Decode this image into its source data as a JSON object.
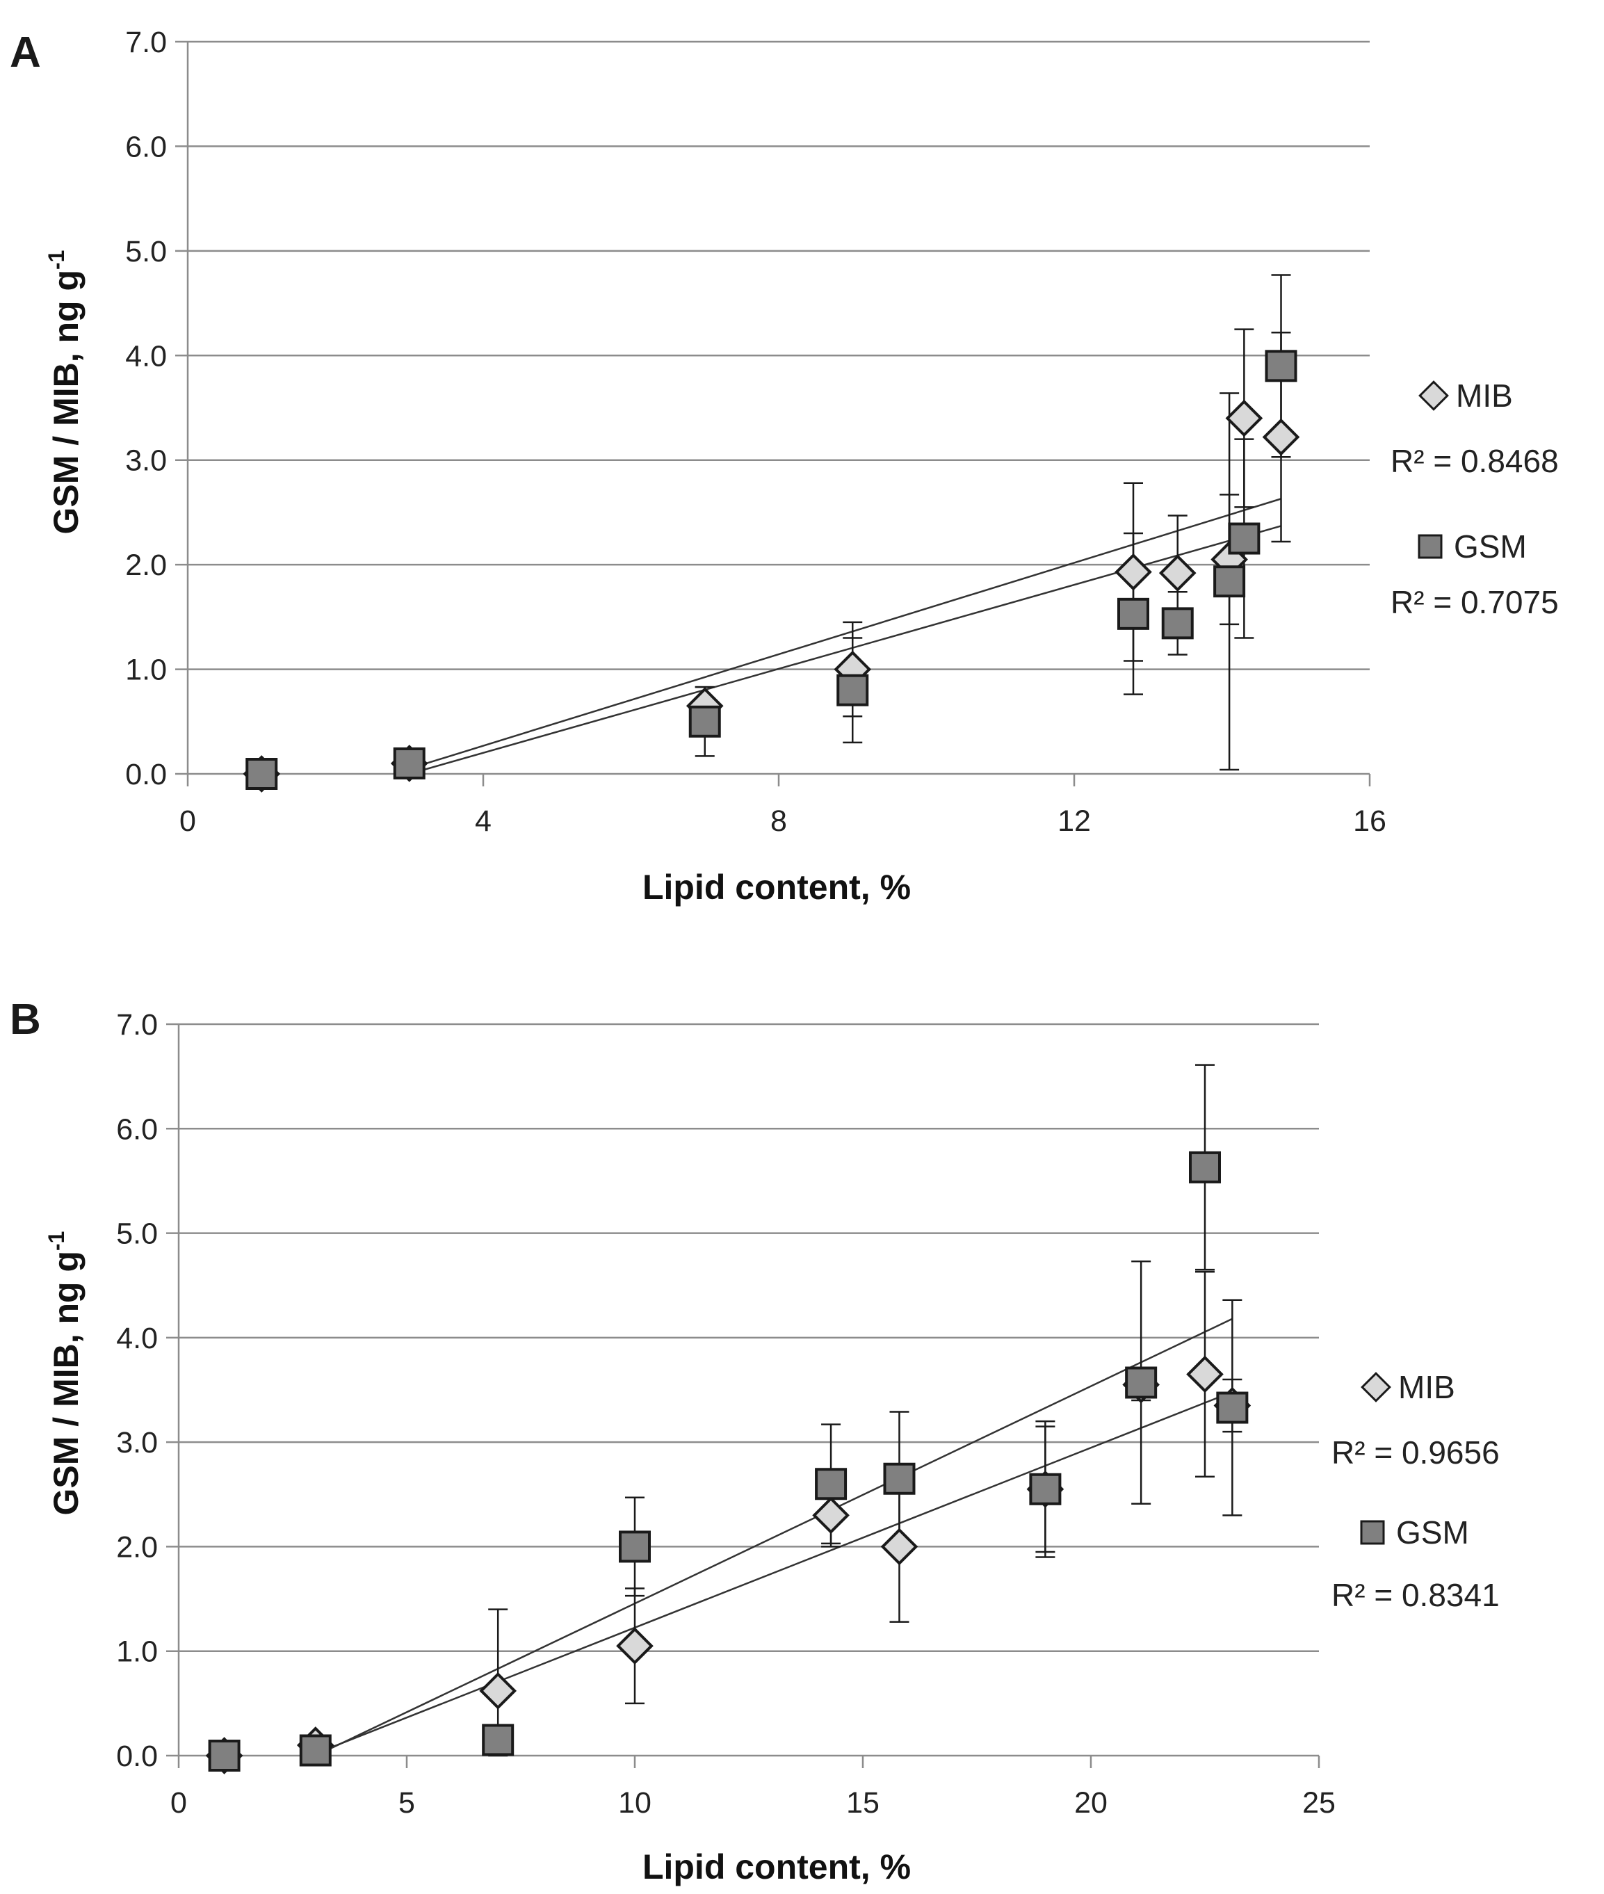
{
  "chart_data": [
    {
      "panel": "A",
      "type": "scatter",
      "xlabel": "Lipid content, %",
      "ylabel": "GSM / MIB, ng g",
      "ylabel_sup": "-1",
      "xlim": [
        0,
        16
      ],
      "ylim": [
        0,
        7
      ],
      "x_ticks": [
        0,
        4,
        8,
        12,
        16
      ],
      "x_tick_labels": [
        "0",
        "4",
        "8",
        "12",
        "16"
      ],
      "y_ticks": [
        0,
        1,
        2,
        3,
        4,
        5,
        6,
        7
      ],
      "y_tick_labels": [
        "0.0",
        "1.0",
        "2.0",
        "3.0",
        "4.0",
        "5.0",
        "6.0",
        "7.0"
      ],
      "series": [
        {
          "name": "MIB",
          "marker": "diamond",
          "color": "#d9d9d9",
          "r2_label": "R² = 0.8468",
          "points": [
            {
              "x": 1,
              "y": 0.0,
              "err": 0.05
            },
            {
              "x": 3,
              "y": 0.1,
              "err": 0.08
            },
            {
              "x": 7,
              "y": 0.65,
              "err": 0.18
            },
            {
              "x": 9,
              "y": 1.0,
              "err": 0.45
            },
            {
              "x": 12.8,
              "y": 1.93,
              "err": 0.85
            },
            {
              "x": 13.4,
              "y": 1.92,
              "err": 0.55
            },
            {
              "x": 14.1,
              "y": 2.05,
              "err": 0.62
            },
            {
              "x": 14.3,
              "y": 3.4,
              "err": 0.85
            },
            {
              "x": 14.8,
              "y": 3.22,
              "err": 1.0
            }
          ],
          "trend": {
            "x": [
              3,
              14.8
            ],
            "y": [
              0.0,
              2.37
            ]
          }
        },
        {
          "name": "GSM",
          "marker": "square",
          "color": "#808080",
          "r2_label": "R² = 0.7075",
          "points": [
            {
              "x": 1,
              "y": 0.0,
              "err": 0.05
            },
            {
              "x": 3,
              "y": 0.1,
              "err": 0.08
            },
            {
              "x": 7,
              "y": 0.5,
              "err": 0.33
            },
            {
              "x": 9,
              "y": 0.8,
              "err": 0.5
            },
            {
              "x": 12.8,
              "y": 1.53,
              "err": 0.77
            },
            {
              "x": 13.4,
              "y": 1.44,
              "err": 0.3
            },
            {
              "x": 14.1,
              "y": 1.84,
              "err": 1.8
            },
            {
              "x": 14.3,
              "y": 2.25,
              "err": 0.95
            },
            {
              "x": 14.8,
              "y": 3.9,
              "err": 0.87
            }
          ],
          "trend": {
            "x": [
              3,
              14.8
            ],
            "y": [
              0.05,
              2.63
            ]
          }
        }
      ]
    },
    {
      "panel": "B",
      "type": "scatter",
      "xlabel": "Lipid content, %",
      "ylabel": "GSM / MIB, ng g",
      "ylabel_sup": "-1",
      "xlim": [
        0,
        25
      ],
      "ylim": [
        0,
        7
      ],
      "x_ticks": [
        0,
        5,
        10,
        15,
        20,
        25
      ],
      "x_tick_labels": [
        "0",
        "5",
        "10",
        "15",
        "20",
        "25"
      ],
      "y_ticks": [
        0,
        1,
        2,
        3,
        4,
        5,
        6,
        7
      ],
      "y_tick_labels": [
        "0.0",
        "1.0",
        "2.0",
        "3.0",
        "4.0",
        "5.0",
        "6.0",
        "7.0"
      ],
      "series": [
        {
          "name": "MIB",
          "marker": "diamond",
          "color": "#d9d9d9",
          "r2_label": "R² = 0.9656",
          "points": [
            {
              "x": 1,
              "y": 0.0,
              "err": 0.05
            },
            {
              "x": 3,
              "y": 0.1,
              "err": 0.05
            },
            {
              "x": 7,
              "y": 0.62,
              "err": 0.78
            },
            {
              "x": 10,
              "y": 1.05,
              "err": 0.55
            },
            {
              "x": 14.3,
              "y": 2.3,
              "err": 0.3
            },
            {
              "x": 15.8,
              "y": 2.0,
              "err": 0.72
            },
            {
              "x": 19,
              "y": 2.55,
              "err": 0.6
            },
            {
              "x": 21.1,
              "y": 3.55,
              "err": 0.15
            },
            {
              "x": 22.5,
              "y": 3.65,
              "err": 0.98
            },
            {
              "x": 23.1,
              "y": 3.35,
              "err": 0.25
            }
          ],
          "trend": {
            "x": [
              3,
              23.1
            ],
            "y": [
              0.02,
              3.48
            ]
          }
        },
        {
          "name": "GSM",
          "marker": "square",
          "color": "#808080",
          "r2_label": "R² = 0.8341",
          "points": [
            {
              "x": 1,
              "y": 0.0,
              "err": 0.05
            },
            {
              "x": 3,
              "y": 0.05,
              "err": 0.05
            },
            {
              "x": 7,
              "y": 0.15,
              "err": 0.1
            },
            {
              "x": 10,
              "y": 2.0,
              "err": 0.47
            },
            {
              "x": 14.3,
              "y": 2.6,
              "err": 0.57
            },
            {
              "x": 15.8,
              "y": 2.65,
              "err": 0.64
            },
            {
              "x": 19,
              "y": 2.55,
              "err": 0.65
            },
            {
              "x": 21.1,
              "y": 3.57,
              "err": 1.16
            },
            {
              "x": 22.5,
              "y": 5.63,
              "err": 0.98
            },
            {
              "x": 23.1,
              "y": 3.33,
              "err": 1.03
            }
          ],
          "trend": {
            "x": [
              3,
              23.1
            ],
            "y": [
              0.0,
              4.18
            ]
          }
        }
      ]
    }
  ]
}
